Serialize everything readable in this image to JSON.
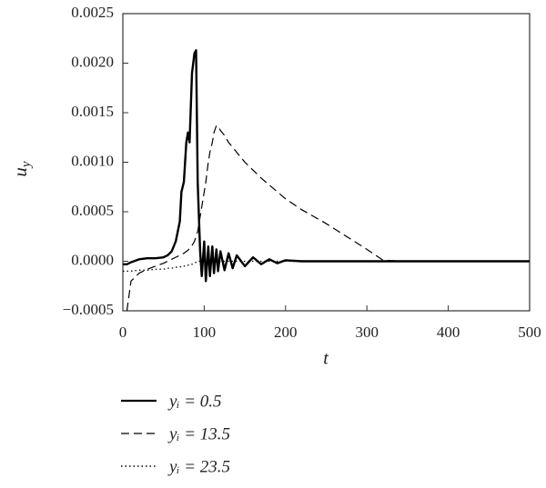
{
  "chart_data": {
    "type": "line",
    "x_label": "t",
    "y_label": "u",
    "y_label_sub": "y",
    "x": [
      0,
      5,
      10,
      20,
      30,
      40,
      50,
      55,
      60,
      65,
      70,
      72,
      75,
      78,
      80,
      82,
      85,
      88,
      90,
      92,
      95,
      97,
      100,
      102,
      105,
      107,
      110,
      112,
      115,
      117,
      120,
      125,
      130,
      135,
      140,
      150,
      160,
      170,
      180,
      190,
      200,
      220,
      250,
      300,
      320,
      350,
      400,
      450,
      500
    ],
    "series": [
      {
        "name": "yᵢ = 0.5",
        "color": "#000000",
        "linestyle": "solid",
        "values": [
          -3e-05,
          -3e-05,
          -1e-05,
          2e-05,
          3e-05,
          3e-05,
          4e-05,
          6e-05,
          0.0001,
          0.0002,
          0.0004,
          0.0007,
          0.0008,
          0.0012,
          0.0013,
          0.0012,
          0.0019,
          0.0021,
          0.00213,
          0.0008,
          0.0001,
          -0.00015,
          0.0002,
          -0.0002,
          0.00015,
          -0.00015,
          0.00015,
          -0.00012,
          0.00012,
          -0.0001,
          0.0001,
          -9e-05,
          8e-05,
          -7e-05,
          6e-05,
          -5e-05,
          4e-05,
          -3e-05,
          2e-05,
          -2e-05,
          1e-05,
          0,
          0,
          0,
          0,
          0,
          0,
          0,
          0
        ]
      },
      {
        "name": "yᵢ = 13.5",
        "color": "#000000",
        "linestyle": "dashed",
        "values": [
          null,
          -0.0005,
          -0.0002,
          -0.00012,
          -8e-05,
          -5e-05,
          -2e-05,
          0,
          2e-05,
          4e-05,
          6e-05,
          7e-05,
          8e-05,
          0.0001,
          0.00011,
          0.00013,
          0.00016,
          0.0002,
          0.00025,
          0.0003,
          0.00045,
          0.00055,
          0.0007,
          0.0008,
          0.001,
          0.0011,
          0.0012,
          0.0013,
          0.00137,
          0.00136,
          0.00132,
          0.00127,
          0.0012,
          0.00115,
          0.0011,
          0.001,
          0.00092,
          0.00084,
          0.00077,
          0.0007,
          0.00063,
          0.00052,
          0.00038,
          0.00012,
          1e-05,
          0,
          0,
          0,
          0
        ]
      },
      {
        "name": "yᵢ = 23.5",
        "color": "#000000",
        "linestyle": "dotted",
        "values": [
          -0.0001,
          -0.0001,
          -0.0001,
          -9e-05,
          -9e-05,
          -8e-05,
          -8e-05,
          -7e-05,
          -7e-05,
          -6e-05,
          -6e-05,
          -5e-05,
          -5e-05,
          -4e-05,
          -4e-05,
          -3e-05,
          -3e-05,
          -2e-05,
          -1e-05,
          0,
          0,
          0,
          0,
          0,
          0,
          0,
          0,
          0,
          0,
          0,
          0,
          0,
          0,
          0,
          0,
          0,
          0,
          0,
          0,
          0,
          0,
          0,
          0,
          0,
          0,
          0,
          0,
          0,
          0
        ]
      }
    ],
    "xlim": [
      0,
      500
    ],
    "xticks": [
      0,
      100,
      200,
      300,
      400,
      500
    ],
    "ylim": [
      -0.0005,
      0.0025
    ],
    "yticks": [
      {
        "value": -0.0005,
        "label": "−0.0005"
      },
      {
        "value": 0,
        "label": "0.0000"
      },
      {
        "value": 0.0005,
        "label": "0.0005"
      },
      {
        "value": 0.001,
        "label": "0.0010"
      },
      {
        "value": 0.0015,
        "label": "0.0015"
      },
      {
        "value": 0.002,
        "label": "0.0020"
      },
      {
        "value": 0.0025,
        "label": "0.0025"
      }
    ],
    "grid": false
  }
}
